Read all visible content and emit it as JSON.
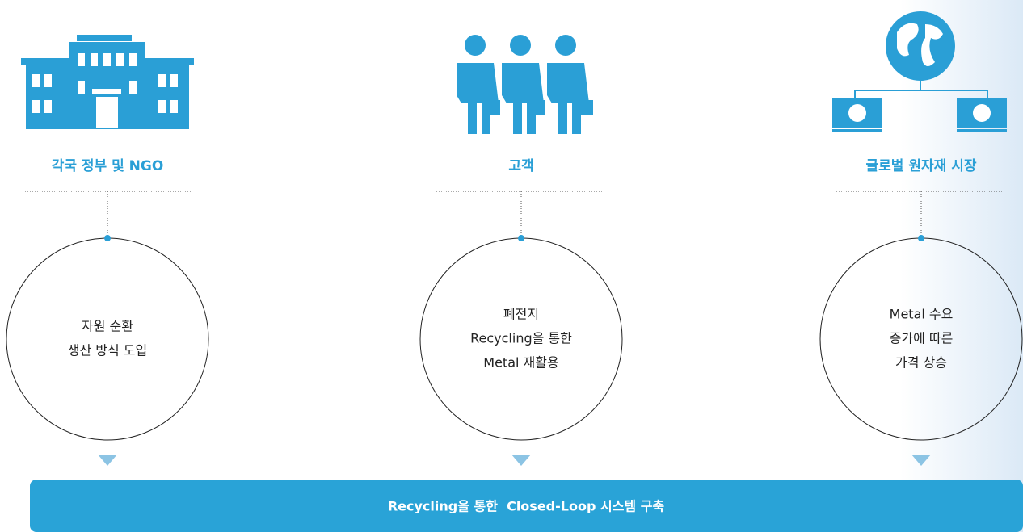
{
  "columns": [
    {
      "title": "각국 정부 및 NGO",
      "lines": [
        "자원 순환",
        "생산 방식 도입"
      ]
    },
    {
      "title": "고객",
      "lines": [
        "폐전지",
        "Recycling을 통한",
        "Metal 재활용"
      ]
    },
    {
      "title": "글로벌 원자재 시장",
      "lines": [
        "Metal 수요",
        "증가에 따른",
        "가격 상승"
      ]
    }
  ],
  "footer": "Recycling을 통한  Closed-Loop 시스템 구축"
}
